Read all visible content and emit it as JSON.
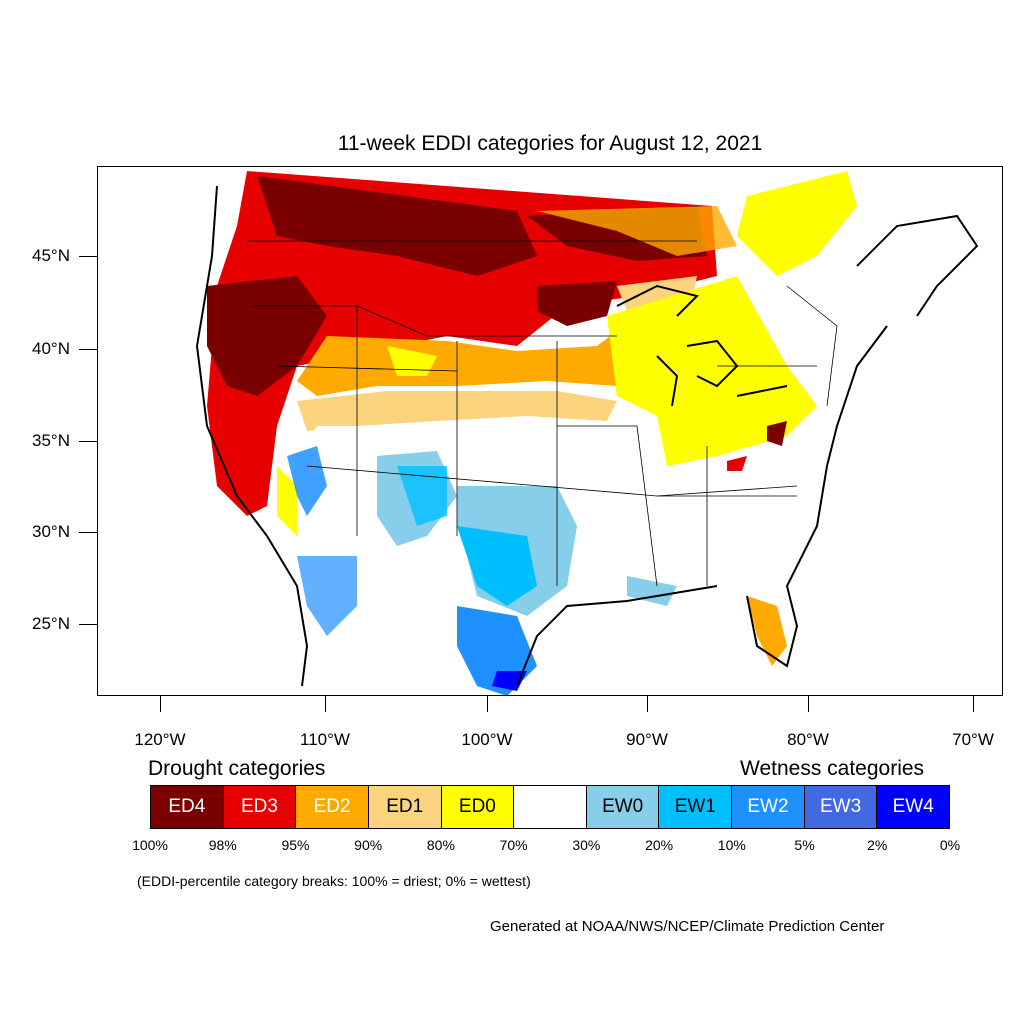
{
  "title": "11-week EDDI categories for August 12, 2021",
  "latitude_labels": [
    "45°N",
    "40°N",
    "35°N",
    "30°N",
    "25°N"
  ],
  "longitude_labels": [
    "120°W",
    "110°W",
    "100°W",
    "90°W",
    "80°W",
    "70°W"
  ],
  "legend": {
    "drought_heading": "Drought categories",
    "wetness_heading": "Wetness categories",
    "categories": [
      {
        "label": "ED4",
        "color": "#7a0000",
        "text_color": "#ffffff"
      },
      {
        "label": "ED3",
        "color": "#e60000",
        "text_color": "#ffffff"
      },
      {
        "label": "ED2",
        "color": "#ffaa00",
        "text_color": "#ffffff"
      },
      {
        "label": "ED1",
        "color": "#fcd37f",
        "text_color": "#000000"
      },
      {
        "label": "ED0",
        "color": "#ffff00",
        "text_color": "#000000"
      },
      {
        "label": "",
        "color": "#ffffff",
        "text_color": "#000000"
      },
      {
        "label": "EW0",
        "color": "#87ceeb",
        "text_color": "#000000"
      },
      {
        "label": "EW1",
        "color": "#00bfff",
        "text_color": "#000000"
      },
      {
        "label": "EW2",
        "color": "#1e90ff",
        "text_color": "#ffffff"
      },
      {
        "label": "EW3",
        "color": "#4169e1",
        "text_color": "#ffffff"
      },
      {
        "label": "EW4",
        "color": "#0000ff",
        "text_color": "#ffffff"
      }
    ],
    "breaks": [
      "100%",
      "98%",
      "95%",
      "90%",
      "80%",
      "70%",
      "30%",
      "20%",
      "10%",
      "5%",
      "2%",
      "0%"
    ]
  },
  "breaks_note": "(EDDI-percentile category breaks: 100% = driest; 0% = wettest)",
  "credit": "Generated at NOAA/NWS/NCEP/Climate Prediction Center"
}
